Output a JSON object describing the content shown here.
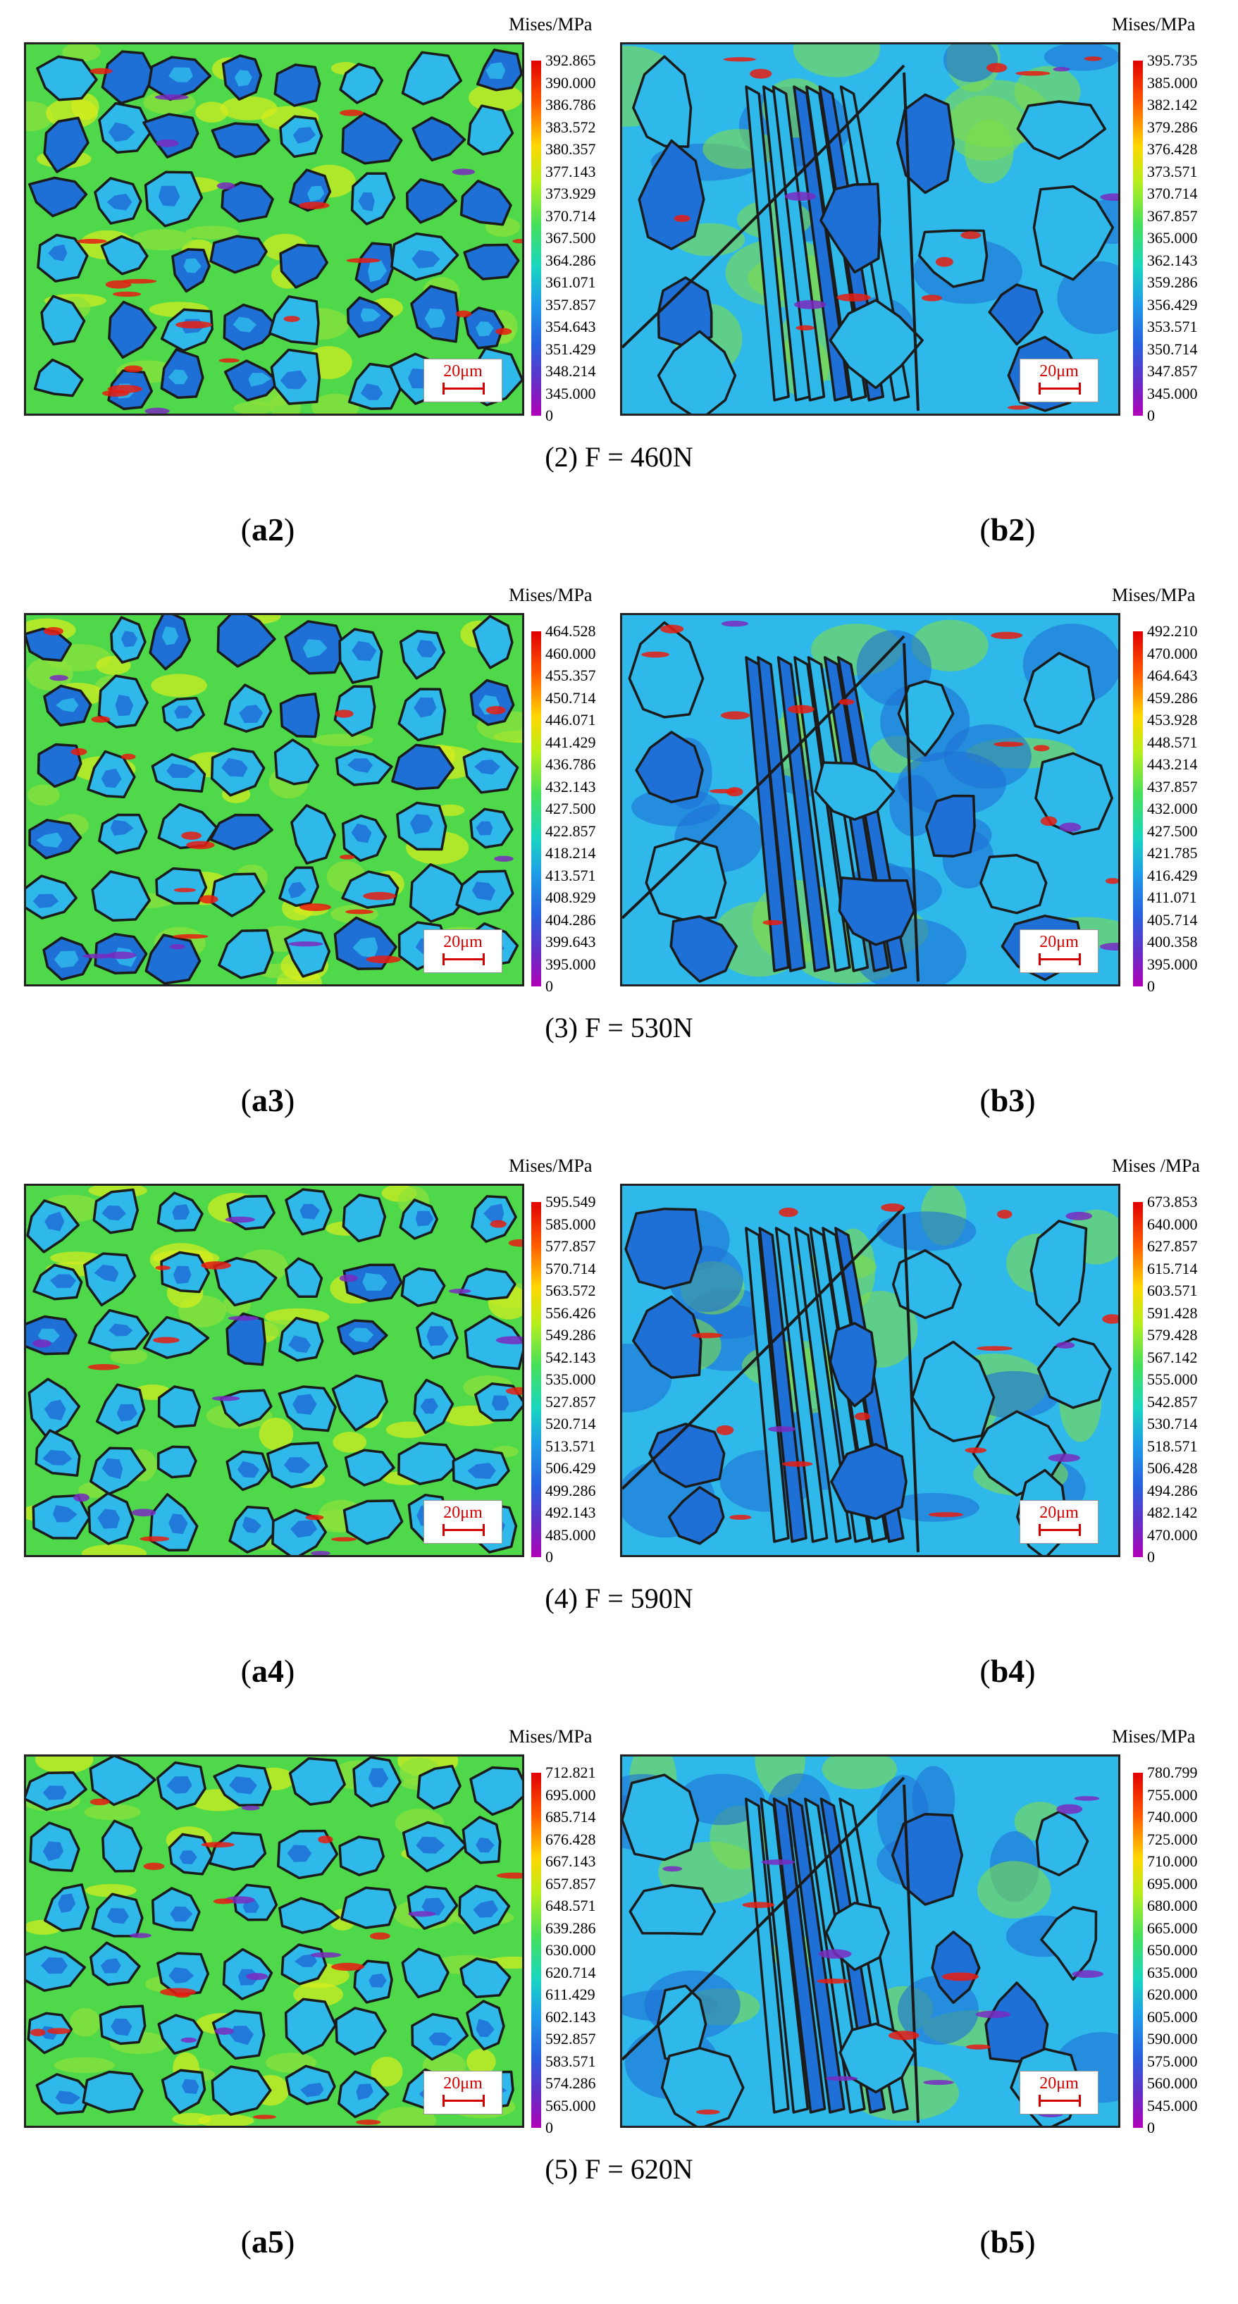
{
  "rows": [
    {
      "caption": "(2) F = 460N",
      "label_a": "a2",
      "label_b": "b2",
      "legend_a": {
        "title": "Mises/MPa",
        "ticks": [
          "392.865",
          "390.000",
          "386.786",
          "383.572",
          "380.357",
          "377.143",
          "373.929",
          "370.714",
          "367.500",
          "364.286",
          "361.071",
          "357.857",
          "354.643",
          "351.429",
          "348.214",
          "345.000",
          "0"
        ]
      },
      "legend_b": {
        "title": "Mises/MPa",
        "ticks": [
          "395.735",
          "385.000",
          "382.142",
          "379.286",
          "376.428",
          "373.571",
          "370.714",
          "367.857",
          "365.000",
          "362.143",
          "359.286",
          "356.429",
          "353.571",
          "350.714",
          "347.857",
          "345.000",
          "0"
        ]
      },
      "scale_a": "20μm",
      "scale_b": "20μm"
    },
    {
      "caption": "(3) F = 530N",
      "label_a": "a3",
      "label_b": "b3",
      "legend_a": {
        "title": "Mises/MPa",
        "ticks": [
          "464.528",
          "460.000",
          "455.357",
          "450.714",
          "446.071",
          "441.429",
          "436.786",
          "432.143",
          "427.500",
          "422.857",
          "418.214",
          "413.571",
          "408.929",
          "404.286",
          "399.643",
          "395.000",
          "0"
        ]
      },
      "legend_b": {
        "title": "Mises/MPa",
        "ticks": [
          "492.210",
          "470.000",
          "464.643",
          "459.286",
          "453.928",
          "448.571",
          "443.214",
          "437.857",
          "432.000",
          "427.500",
          "421.785",
          "416.429",
          "411.071",
          "405.714",
          "400.358",
          "395.000",
          "0"
        ]
      },
      "scale_a": "20μm",
      "scale_b": "20μm"
    },
    {
      "caption": "(4) F = 590N",
      "label_a": "a4",
      "label_b": "b4",
      "legend_a": {
        "title": "Mises/MPa",
        "ticks": [
          "595.549",
          "585.000",
          "577.857",
          "570.714",
          "563.572",
          "556.426",
          "549.286",
          "542.143",
          "535.000",
          "527.857",
          "520.714",
          "513.571",
          "506.429",
          "499.286",
          "492.143",
          "485.000",
          "0"
        ]
      },
      "legend_b": {
        "title": "Mises /MPa",
        "ticks": [
          "673.853",
          "640.000",
          "627.857",
          "615.714",
          "603.571",
          "591.428",
          "579.428",
          "567.142",
          "555.000",
          "542.857",
          "530.714",
          "518.571",
          "506.428",
          "494.286",
          "482.142",
          "470.000",
          "0"
        ]
      },
      "scale_a": "20μm",
      "scale_b": "20μm"
    },
    {
      "caption": "(5) F = 620N",
      "label_a": "a5",
      "label_b": "b5",
      "legend_a": {
        "title": "Mises/MPa",
        "ticks": [
          "712.821",
          "695.000",
          "685.714",
          "676.428",
          "667.143",
          "657.857",
          "648.571",
          "639.286",
          "630.000",
          "620.714",
          "611.429",
          "602.143",
          "592.857",
          "583.571",
          "574.286",
          "565.000",
          "0"
        ]
      },
      "legend_b": {
        "title": "Mises/MPa",
        "ticks": [
          "780.799",
          "755.000",
          "740.000",
          "725.000",
          "710.000",
          "695.000",
          "680.000",
          "665.000",
          "650.000",
          "635.000",
          "620.000",
          "605.000",
          "590.000",
          "575.000",
          "560.000",
          "545.000",
          "0"
        ]
      },
      "scale_a": "20μm",
      "scale_b": "20μm"
    }
  ],
  "colors": {
    "grain_boundary": "#1b1b1b",
    "field_blue": "#1e6fd6",
    "field_cyan": "#2fb8ea",
    "field_green": "#4fd84a",
    "field_yellow": "#d8ee1e",
    "field_red": "#e81c10",
    "field_purple": "#7a2ac0",
    "scale_red": "#d40000"
  }
}
